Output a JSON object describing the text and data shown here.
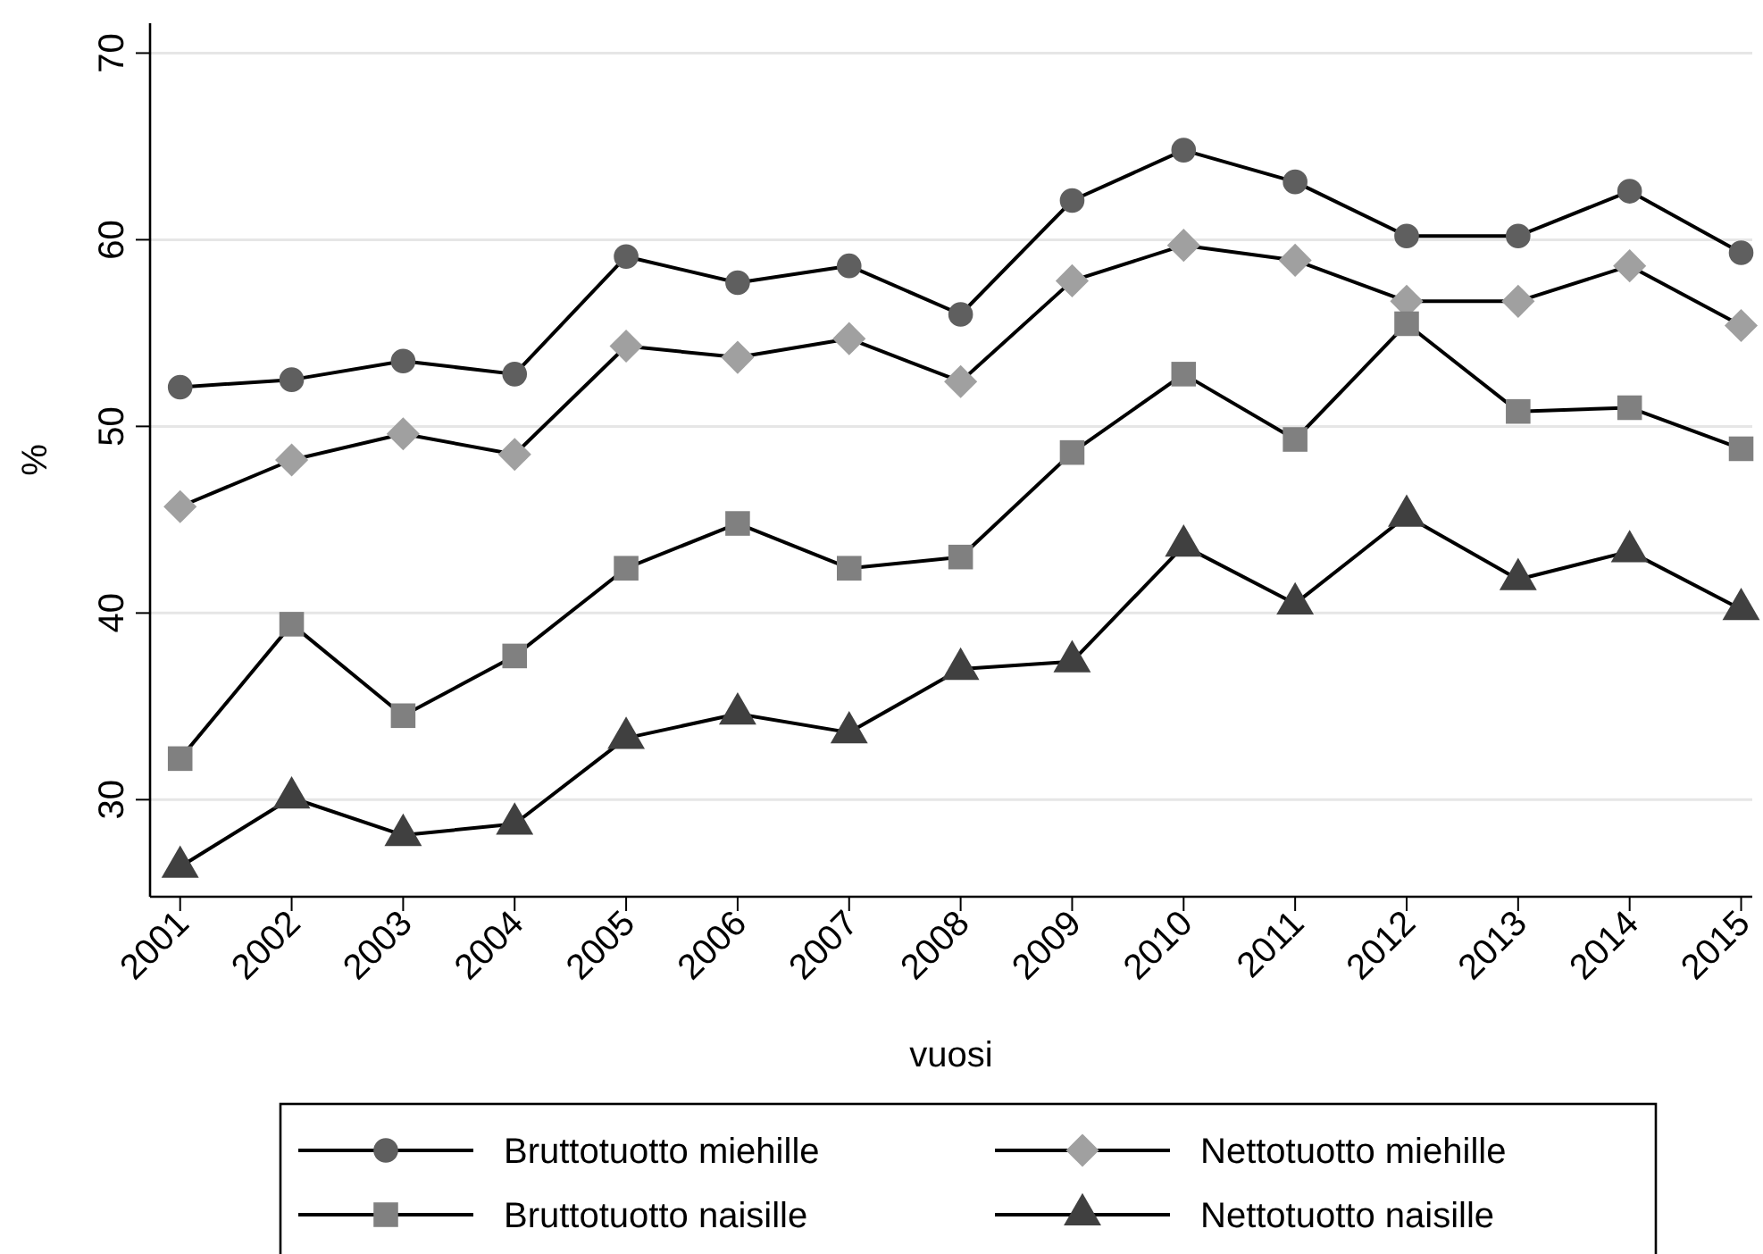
{
  "chart_data": {
    "type": "line",
    "xlabel": "vuosi",
    "ylabel": "%",
    "x": [
      2001,
      2002,
      2003,
      2004,
      2005,
      2006,
      2007,
      2008,
      2009,
      2010,
      2011,
      2012,
      2013,
      2014,
      2015
    ],
    "xlim": [
      2000.73,
      2015.1
    ],
    "xticks": [
      2001,
      2002,
      2003,
      2004,
      2005,
      2006,
      2007,
      2008,
      2009,
      2010,
      2011,
      2012,
      2013,
      2014,
      2015
    ],
    "ylim": [
      24.8,
      71.6
    ],
    "yticks": [
      30,
      40,
      50,
      60,
      70
    ],
    "grid": "y",
    "legend": "bottom",
    "series": [
      {
        "name": "Bruttotuotto miehille",
        "color": "#5f5f5f",
        "marker": "circle",
        "values": [
          52.1,
          52.5,
          53.5,
          52.8,
          59.1,
          57.7,
          58.6,
          56.0,
          62.1,
          64.8,
          63.1,
          60.2,
          60.2,
          62.6,
          59.3
        ]
      },
      {
        "name": "Nettotuotto miehille",
        "color": "#a0a0a0",
        "marker": "diamond",
        "values": [
          45.7,
          48.2,
          49.6,
          48.5,
          54.3,
          53.7,
          54.7,
          52.4,
          57.8,
          59.7,
          58.9,
          56.7,
          56.7,
          58.6,
          55.4
        ]
      },
      {
        "name": "Bruttotuotto naisille",
        "color": "#808080",
        "marker": "square",
        "values": [
          32.2,
          39.4,
          34.5,
          37.7,
          42.4,
          44.8,
          42.4,
          43.0,
          48.6,
          52.8,
          49.3,
          55.5,
          50.8,
          51.0,
          48.8
        ]
      },
      {
        "name": "Nettotuotto naisille",
        "color": "#404040",
        "marker": "triangle",
        "values": [
          26.4,
          30.1,
          28.1,
          28.7,
          33.3,
          34.6,
          33.6,
          37.0,
          37.4,
          43.6,
          40.5,
          45.2,
          41.8,
          43.3,
          40.2
        ]
      }
    ]
  }
}
